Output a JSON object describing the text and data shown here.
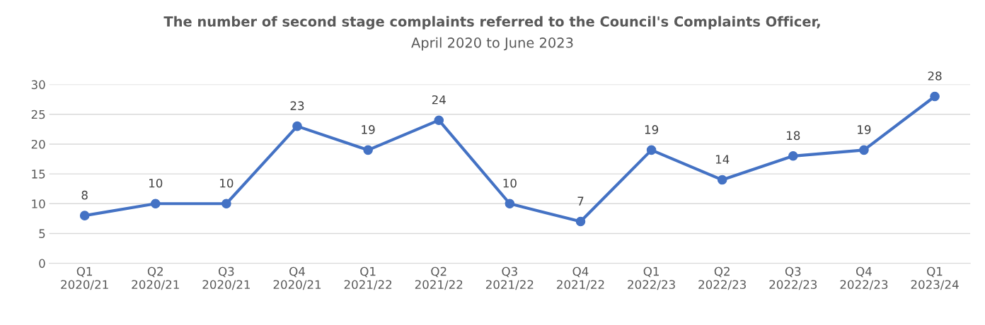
{
  "chart_data": {
    "type": "line",
    "title": "The number of second stage complaints referred to the Council's Complaints Officer,",
    "subtitle": "April 2020 to June 2023",
    "categories": [
      "Q1\n2020/21",
      "Q2\n2020/21",
      "Q3\n2020/21",
      "Q4\n2020/21",
      "Q1\n2021/22",
      "Q2\n2021/22",
      "Q3\n2021/22",
      "Q4\n2021/22",
      "Q1\n2022/23",
      "Q2\n2022/23",
      "Q3\n2022/23",
      "Q4\n2022/23",
      "Q1\n2023/24"
    ],
    "series": [
      {
        "color": "#4472c4",
        "values": [
          8,
          10,
          10,
          23,
          19,
          24,
          10,
          7,
          19,
          14,
          18,
          19,
          28
        ]
      }
    ],
    "ylim": [
      0,
      30
    ],
    "yticks": [
      0,
      5,
      10,
      15,
      20,
      25,
      30
    ],
    "grid": "y",
    "data_labels": true,
    "marker": "circle",
    "line_style": "solid",
    "legend": false
  }
}
